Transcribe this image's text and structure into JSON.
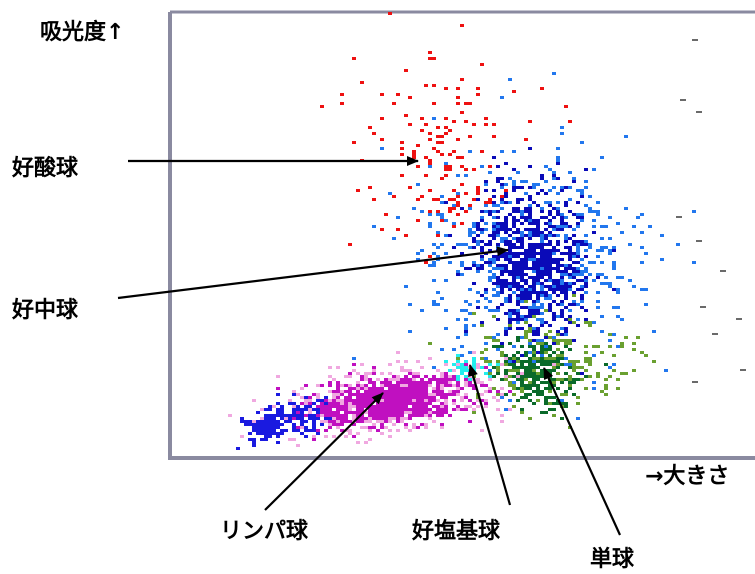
{
  "labels": {
    "y_axis": "吸光度↑",
    "x_axis": "→大きさ",
    "eosinophil": "好酸球",
    "neutrophil": "好中球",
    "lymphocyte": "リンパ球",
    "basophil": "好塩基球",
    "monocyte": "単球"
  },
  "colors": {
    "eosinophil": "#ee1111",
    "neutrophil_core": "#0a0ab8",
    "neutrophil_outer": "#2277ee",
    "lymphocyte_core": "#c010c0",
    "lymphocyte_outer": "#f0a8e0",
    "basophil": "#22eeee",
    "monocyte_core": "#0a6a2a",
    "monocyte_outer": "#6aa030",
    "lymph_tail": "#1a1ae0",
    "frame": "#8a8aa0",
    "arrow": "#000000"
  }
}
